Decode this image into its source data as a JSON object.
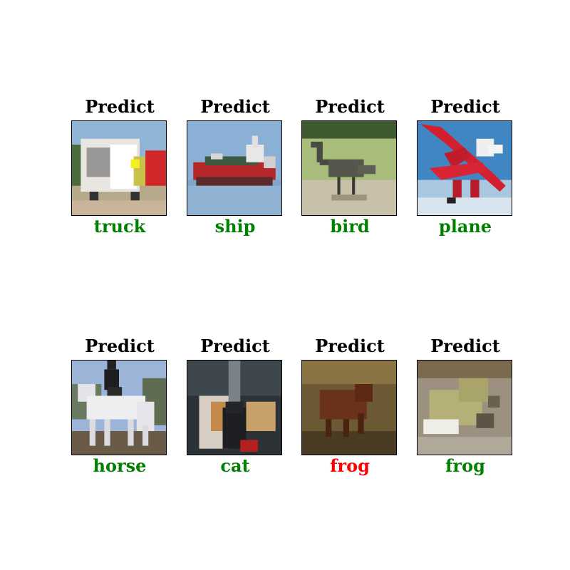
{
  "panels": [
    {
      "title": "Predict",
      "label": "truck",
      "label_color": "#008000",
      "image": "truck-image"
    },
    {
      "title": "Predict",
      "label": "ship",
      "label_color": "#008000",
      "image": "ship-image"
    },
    {
      "title": "Predict",
      "label": "bird",
      "label_color": "#008000",
      "image": "bird-image"
    },
    {
      "title": "Predict",
      "label": "plane",
      "label_color": "#008000",
      "image": "plane-image"
    },
    {
      "title": "Predict",
      "label": "horse",
      "label_color": "#008000",
      "image": "horse-image"
    },
    {
      "title": "Predict",
      "label": "cat",
      "label_color": "#008000",
      "image": "cat-image"
    },
    {
      "title": "Predict",
      "label": "frog",
      "label_color": "#ff0000",
      "image": "frog-image"
    },
    {
      "title": "Predict",
      "label": "frog",
      "label_color": "#008000",
      "image": "frog-image"
    }
  ]
}
